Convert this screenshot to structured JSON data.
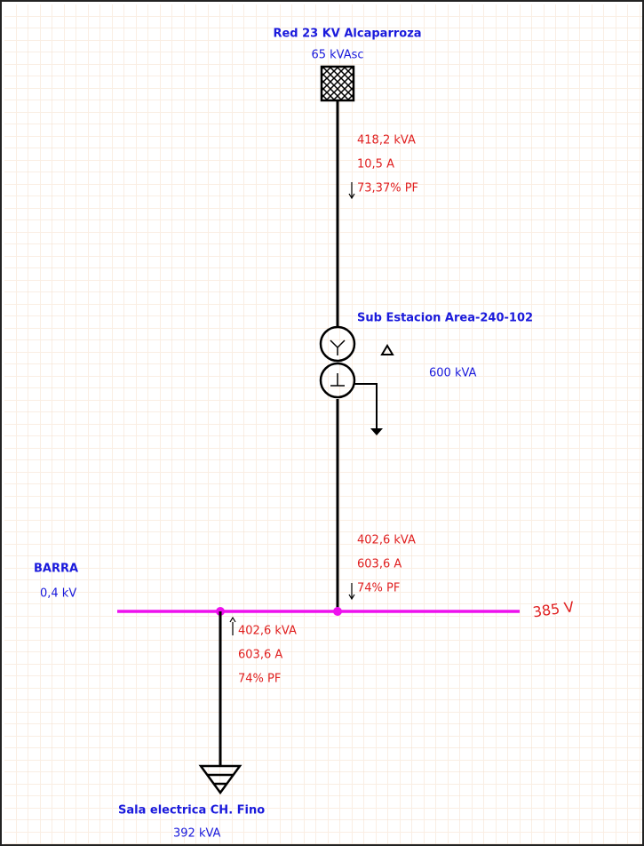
{
  "source": {
    "label": "Red 23 KV Alcaparroza",
    "rating": "65 kVAsc"
  },
  "flows": [
    {
      "power": "418,2 kVA",
      "current": "10,5 A",
      "pf": "73,37% PF"
    },
    {
      "power": "402,6 kVA",
      "current": "603,6 A",
      "pf": "74% PF"
    },
    {
      "power": "402,6 kVA",
      "current": "603,6 A",
      "pf": "74% PF"
    }
  ],
  "transformer": {
    "label": "Sub Estacion Area-240-102",
    "rating": "600 kVA"
  },
  "bus": {
    "label": "BARRA",
    "nominal": "0,4 kV",
    "measured": "385 V"
  },
  "load": {
    "label": "Sala electrica CH. Fino",
    "rating": "392 kVA"
  }
}
